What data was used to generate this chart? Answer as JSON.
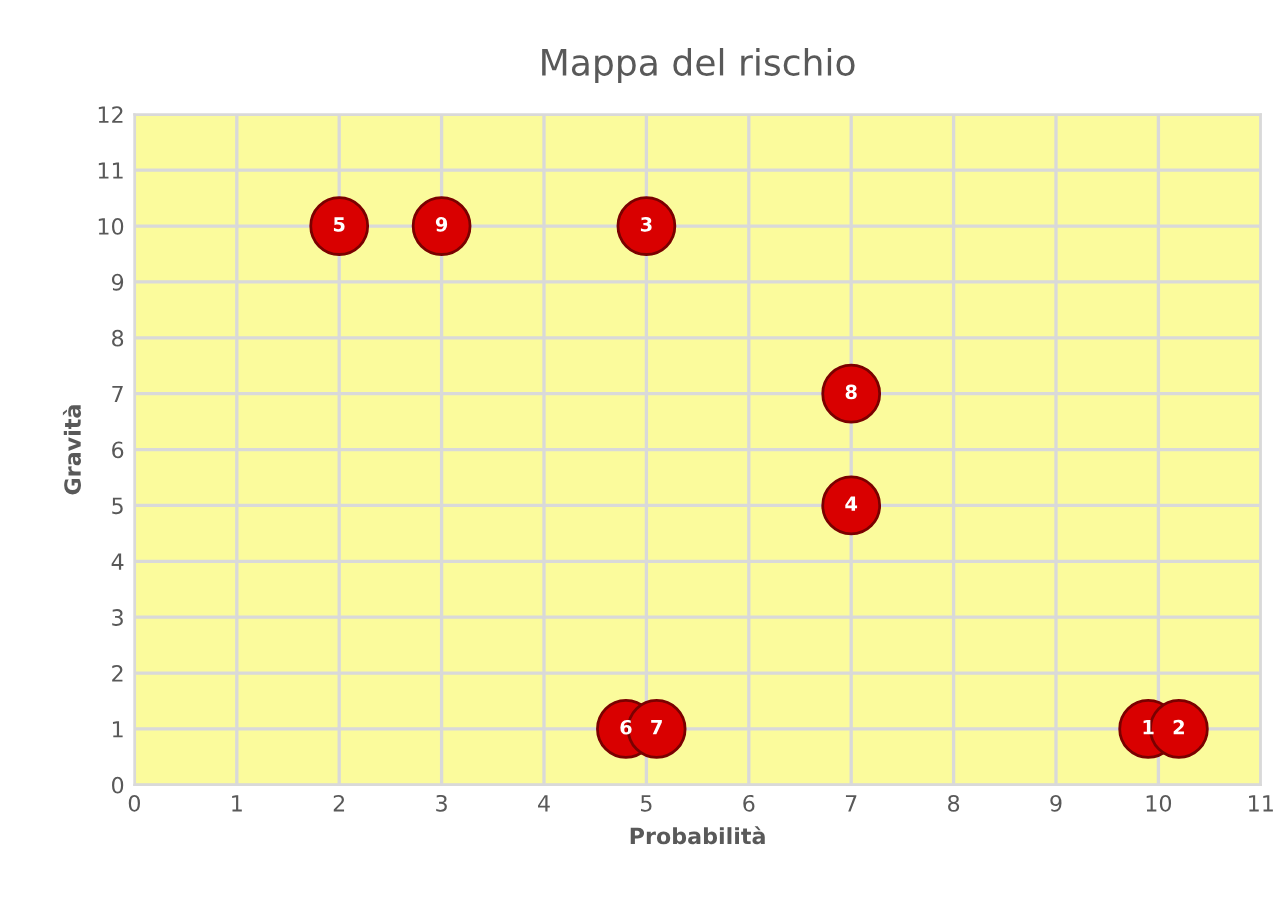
{
  "chart_data": {
    "type": "scatter",
    "title": "Mappa del rischio",
    "xlabel": "Probabilità",
    "ylabel": "Gravità",
    "x": [
      9.9,
      10.2,
      5,
      7,
      2,
      4.8,
      5.1,
      7,
      3
    ],
    "values": [
      1,
      1,
      10,
      5,
      10,
      1,
      1,
      7,
      10
    ],
    "annotations": [
      {
        "text": "1",
        "x": 9.9,
        "y": 1
      },
      {
        "text": "2",
        "x": 10.2,
        "y": 1
      },
      {
        "text": "3",
        "x": 5,
        "y": 10
      },
      {
        "text": "4",
        "x": 7,
        "y": 5
      },
      {
        "text": "5",
        "x": 2,
        "y": 10
      },
      {
        "text": "6",
        "x": 4.8,
        "y": 1
      },
      {
        "text": "7",
        "x": 5.1,
        "y": 1
      },
      {
        "text": "8",
        "x": 7,
        "y": 7
      },
      {
        "text": "9",
        "x": 3,
        "y": 10
      }
    ],
    "color": "#d90000",
    "marker": "circle",
    "xlim": [
      0,
      11
    ],
    "ylim": [
      0,
      12
    ],
    "xticks": [
      0,
      1,
      2,
      3,
      4,
      5,
      6,
      7,
      8,
      9,
      10,
      11
    ],
    "yticks": [
      0,
      1,
      2,
      3,
      4,
      5,
      6,
      7,
      8,
      9,
      10,
      11,
      12
    ],
    "grid": true,
    "legend": false
  }
}
